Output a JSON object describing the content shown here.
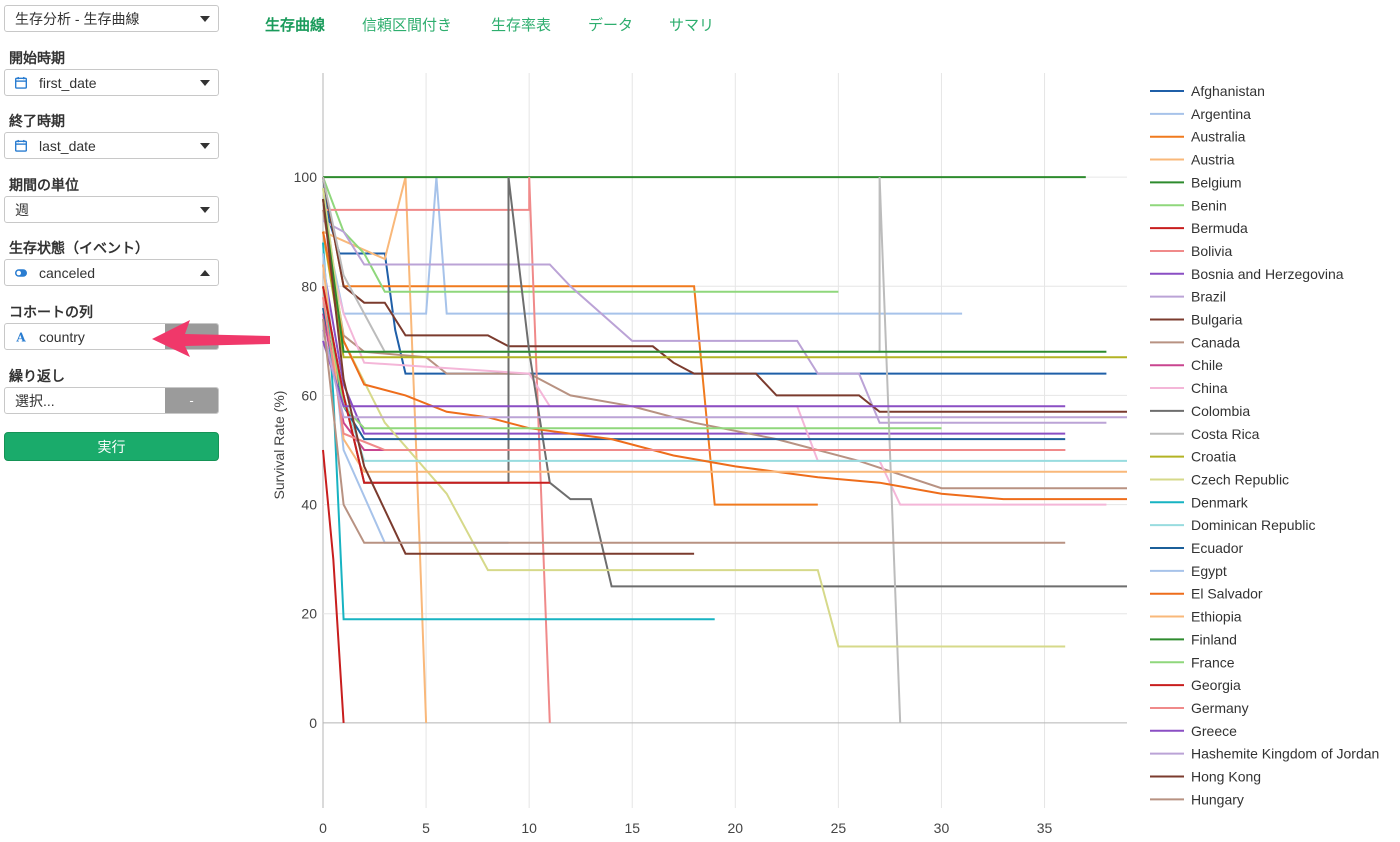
{
  "analysis_select": {
    "value": "生存分析 - 生存曲線"
  },
  "start": {
    "label": "開始時期",
    "value": "first_date"
  },
  "end": {
    "label": "終了時期",
    "value": "last_date"
  },
  "unit": {
    "label": "期間の単位",
    "value": "週"
  },
  "event": {
    "label": "生存状態（イベント）",
    "value": "canceled"
  },
  "cohort": {
    "label": "コホートの列",
    "value": "country"
  },
  "repeat": {
    "label": "繰り返し",
    "placeholder": "選択...",
    "button": "-"
  },
  "run_button": "実行",
  "tabs": [
    {
      "label": "生存曲線",
      "active": true
    },
    {
      "label": "信頼区間付き"
    },
    {
      "label": "生存率表"
    },
    {
      "label": "データ"
    },
    {
      "label": "サマリ"
    }
  ],
  "colors": {
    "accent": "#1aab6b",
    "arrow": "#f0386a"
  },
  "chart_data": {
    "type": "line",
    "ylabel": "Survival Rate (%)",
    "xlabel": "",
    "xlim": [
      0,
      39
    ],
    "ylim": [
      -20,
      120
    ],
    "xticks": [
      0,
      5,
      10,
      15,
      20,
      25,
      30,
      35
    ],
    "yticks": [
      0,
      20,
      40,
      60,
      80,
      100
    ],
    "grid": true,
    "legend_position": "right",
    "series": [
      {
        "name": "Afghanistan",
        "color": "#1f5fa8",
        "points": [
          [
            0,
            100
          ],
          [
            0.3,
            92
          ],
          [
            0.8,
            86
          ],
          [
            3,
            86
          ],
          [
            3.5,
            72
          ],
          [
            4,
            64
          ],
          [
            38,
            64
          ]
        ]
      },
      {
        "name": "Argentina",
        "color": "#a7c3ea",
        "points": [
          [
            0,
            98
          ],
          [
            0.5,
            84
          ],
          [
            1,
            75
          ],
          [
            5,
            75
          ],
          [
            5.5,
            100
          ],
          [
            6,
            75
          ],
          [
            31,
            75
          ]
        ]
      },
      {
        "name": "Australia",
        "color": "#f07a1e",
        "points": [
          [
            0,
            100
          ],
          [
            0.5,
            90
          ],
          [
            1,
            80
          ],
          [
            18,
            80
          ],
          [
            19,
            40
          ],
          [
            24,
            40
          ]
        ]
      },
      {
        "name": "Austria",
        "color": "#f9b87a",
        "points": [
          [
            0,
            90
          ],
          [
            3,
            85
          ],
          [
            4,
            100
          ],
          [
            4.5,
            52
          ],
          [
            5,
            0
          ]
        ]
      },
      {
        "name": "Belgium",
        "color": "#2e8b2e",
        "points": [
          [
            0,
            100
          ],
          [
            37,
            100
          ]
        ]
      },
      {
        "name": "Benin",
        "color": "#8fd77c",
        "points": [
          [
            0,
            100
          ],
          [
            1,
            90
          ],
          [
            2,
            86
          ],
          [
            3,
            79
          ],
          [
            25,
            79
          ]
        ]
      },
      {
        "name": "Bermuda",
        "color": "#c81e1e",
        "points": [
          [
            0,
            50
          ],
          [
            0.5,
            30
          ],
          [
            1,
            0
          ]
        ]
      },
      {
        "name": "Bolivia",
        "color": "#f08a8a",
        "points": [
          [
            0,
            94
          ],
          [
            10,
            94
          ],
          [
            10,
            100
          ],
          [
            10.5,
            50
          ],
          [
            11,
            0
          ]
        ]
      },
      {
        "name": "Bosnia and Herzegovina",
        "color": "#8a4fc4",
        "points": [
          [
            0,
            84
          ],
          [
            1,
            62
          ],
          [
            2,
            53
          ],
          [
            36,
            53
          ]
        ]
      },
      {
        "name": "Brazil",
        "color": "#bba3d6",
        "points": [
          [
            0,
            92
          ],
          [
            1,
            90
          ],
          [
            2,
            84
          ],
          [
            11,
            84
          ],
          [
            12,
            80
          ],
          [
            15,
            70
          ],
          [
            23,
            70
          ],
          [
            24,
            64
          ],
          [
            26,
            64
          ],
          [
            27,
            55
          ],
          [
            38,
            55
          ]
        ]
      },
      {
        "name": "Bulgaria",
        "color": "#7b3b2e",
        "points": [
          [
            0,
            100
          ],
          [
            1,
            80
          ],
          [
            2,
            77
          ],
          [
            3,
            77
          ],
          [
            4,
            71
          ],
          [
            8,
            71
          ],
          [
            9,
            69
          ],
          [
            16,
            69
          ],
          [
            17,
            66
          ],
          [
            18,
            64
          ],
          [
            21,
            64
          ],
          [
            22,
            60
          ],
          [
            26,
            60
          ],
          [
            27,
            57
          ],
          [
            39,
            57
          ]
        ]
      },
      {
        "name": "Canada",
        "color": "#b89282",
        "points": [
          [
            0,
            94
          ],
          [
            1,
            71
          ],
          [
            2,
            68
          ],
          [
            5,
            67
          ],
          [
            6,
            64
          ],
          [
            10,
            64
          ],
          [
            12,
            60
          ],
          [
            15,
            58
          ],
          [
            18,
            55
          ],
          [
            22,
            52
          ],
          [
            26,
            48
          ],
          [
            30,
            43
          ],
          [
            39,
            43
          ]
        ]
      },
      {
        "name": "Chile",
        "color": "#c9458f",
        "points": [
          [
            0,
            75
          ],
          [
            1,
            55
          ],
          [
            2,
            50
          ],
          [
            36,
            50
          ]
        ]
      },
      {
        "name": "China",
        "color": "#f4b6d8",
        "points": [
          [
            0,
            90
          ],
          [
            1,
            75
          ],
          [
            2,
            66
          ],
          [
            10,
            64
          ],
          [
            11,
            58
          ],
          [
            23,
            58
          ],
          [
            24,
            48
          ],
          [
            27,
            48
          ],
          [
            28,
            40
          ],
          [
            38,
            40
          ]
        ]
      },
      {
        "name": "Colombia",
        "color": "#6e6e6e",
        "points": [
          [
            0,
            80
          ],
          [
            1,
            60
          ],
          [
            2,
            44
          ],
          [
            9,
            44
          ],
          [
            9,
            100
          ],
          [
            10,
            68
          ],
          [
            11,
            44
          ],
          [
            12,
            41
          ],
          [
            13,
            41
          ],
          [
            14,
            25
          ],
          [
            39,
            25
          ]
        ]
      },
      {
        "name": "Costa Rica",
        "color": "#bcbcbc",
        "points": [
          [
            0,
            100
          ],
          [
            1,
            82
          ],
          [
            3,
            68
          ],
          [
            27,
            68
          ],
          [
            27,
            100
          ],
          [
            28,
            0
          ]
        ]
      },
      {
        "name": "Croatia",
        "color": "#b3b324",
        "points": [
          [
            0,
            90
          ],
          [
            1,
            67
          ],
          [
            39,
            67
          ]
        ]
      },
      {
        "name": "Czech Republic",
        "color": "#d6d98a",
        "points": [
          [
            0,
            98
          ],
          [
            1,
            70
          ],
          [
            3,
            55
          ],
          [
            6,
            42
          ],
          [
            8,
            28
          ],
          [
            24,
            28
          ],
          [
            25,
            14
          ],
          [
            36,
            14
          ]
        ]
      },
      {
        "name": "Denmark",
        "color": "#17b3c2",
        "points": [
          [
            0,
            88
          ],
          [
            0.5,
            60
          ],
          [
            1,
            19
          ],
          [
            19,
            19
          ]
        ]
      },
      {
        "name": "Dominican Republic",
        "color": "#98dcdf",
        "points": [
          [
            0,
            80
          ],
          [
            1,
            60
          ],
          [
            2,
            48
          ],
          [
            39,
            48
          ]
        ]
      },
      {
        "name": "Ecuador",
        "color": "#1b5f99",
        "points": [
          [
            0,
            76
          ],
          [
            1,
            58
          ],
          [
            2,
            52
          ],
          [
            36,
            52
          ]
        ]
      },
      {
        "name": "Egypt",
        "color": "#a7c3ea",
        "points": [
          [
            0,
            86
          ],
          [
            1,
            50
          ],
          [
            3,
            33
          ],
          [
            9,
            33
          ]
        ]
      },
      {
        "name": "El Salvador",
        "color": "#ee6d1b",
        "points": [
          [
            0,
            90
          ],
          [
            1,
            70
          ],
          [
            2,
            62
          ],
          [
            4,
            60
          ],
          [
            6,
            57
          ],
          [
            8,
            56
          ],
          [
            10,
            54
          ],
          [
            12,
            53
          ],
          [
            14,
            52
          ],
          [
            17,
            49
          ],
          [
            20,
            47
          ],
          [
            24,
            45
          ],
          [
            27,
            44
          ],
          [
            30,
            42
          ],
          [
            33,
            41
          ],
          [
            39,
            41
          ]
        ]
      },
      {
        "name": "Ethiopia",
        "color": "#f9b87a",
        "points": [
          [
            0,
            84
          ],
          [
            1,
            52
          ],
          [
            2,
            46
          ],
          [
            39,
            46
          ]
        ]
      },
      {
        "name": "Finland",
        "color": "#2e8b2e",
        "points": [
          [
            0,
            96
          ],
          [
            1,
            68
          ],
          [
            38,
            68
          ]
        ]
      },
      {
        "name": "France",
        "color": "#8fd77c",
        "points": [
          [
            0,
            80
          ],
          [
            1,
            58
          ],
          [
            2,
            54
          ],
          [
            30,
            54
          ]
        ]
      },
      {
        "name": "Georgia",
        "color": "#c81e1e",
        "points": [
          [
            0,
            80
          ],
          [
            1,
            60
          ],
          [
            2,
            44
          ],
          [
            11,
            44
          ]
        ]
      },
      {
        "name": "Germany",
        "color": "#f08a8a",
        "points": [
          [
            0,
            78
          ],
          [
            1,
            53
          ],
          [
            3,
            50
          ],
          [
            36,
            50
          ]
        ]
      },
      {
        "name": "Greece",
        "color": "#8a4fc4",
        "points": [
          [
            0,
            70
          ],
          [
            1,
            58
          ],
          [
            36,
            58
          ]
        ]
      },
      {
        "name": "Hashemite Kingdom of Jordan",
        "color": "#bba3d6",
        "points": [
          [
            0,
            72
          ],
          [
            1,
            56
          ],
          [
            39,
            56
          ]
        ]
      },
      {
        "name": "Hong Kong",
        "color": "#7b3b2e",
        "points": [
          [
            0,
            96
          ],
          [
            1,
            63
          ],
          [
            2,
            47
          ],
          [
            4,
            31
          ],
          [
            18,
            31
          ]
        ]
      },
      {
        "name": "Hungary",
        "color": "#b89282",
        "points": [
          [
            0,
            74
          ],
          [
            1,
            40
          ],
          [
            2,
            33
          ],
          [
            36,
            33
          ]
        ]
      }
    ]
  }
}
